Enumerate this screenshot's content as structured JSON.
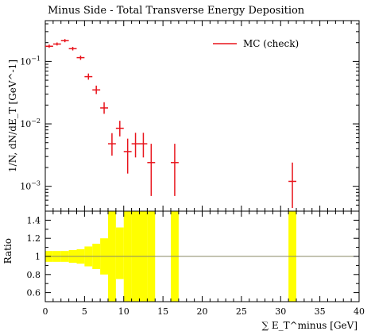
{
  "chart_data": {
    "type": "scatter",
    "title": "Minus Side - Total Transverse Energy Deposition",
    "ylabel": "1/N, dN/dE_T [GeV^-1]",
    "xlabel": "∑ E_T^minus [GeV]",
    "ratio_ylabel": "Ratio",
    "xlim": [
      0,
      40
    ],
    "ylim": [
      0.0004,
      0.45
    ],
    "yscale": "log",
    "ratio_ylim": [
      0.5,
      1.5
    ],
    "ratio_reference": 1,
    "colors": {
      "series": "#e8141c",
      "band": "#ffff00",
      "ref_line": "#888866"
    },
    "x_ticks": [
      "0",
      "5",
      "10",
      "15",
      "20",
      "25",
      "30",
      "35",
      "40"
    ],
    "y_ticks": [
      "10^-1",
      "10^-2",
      "10^-3"
    ],
    "ratio_ticks": [
      "1.4",
      "1.2",
      "1",
      "0.8",
      "0.6"
    ],
    "legend": {
      "position": "top-right",
      "label": "MC (check)"
    },
    "series": [
      {
        "name": "MC (check)",
        "points": [
          {
            "x": 0.5,
            "y": 0.175,
            "ylo": 0.165,
            "yhi": 0.186
          },
          {
            "x": 1.5,
            "y": 0.19,
            "ylo": 0.18,
            "yhi": 0.201
          },
          {
            "x": 2.5,
            "y": 0.215,
            "ylo": 0.203,
            "yhi": 0.228
          },
          {
            "x": 3.5,
            "y": 0.16,
            "ylo": 0.15,
            "yhi": 0.171
          },
          {
            "x": 4.5,
            "y": 0.115,
            "ylo": 0.106,
            "yhi": 0.124
          },
          {
            "x": 5.5,
            "y": 0.057,
            "ylo": 0.051,
            "yhi": 0.064
          },
          {
            "x": 6.5,
            "y": 0.035,
            "ylo": 0.03,
            "yhi": 0.041
          },
          {
            "x": 7.5,
            "y": 0.018,
            "ylo": 0.0145,
            "yhi": 0.0222
          },
          {
            "x": 8.5,
            "y": 0.0048,
            "ylo": 0.0031,
            "yhi": 0.0071
          },
          {
            "x": 9.5,
            "y": 0.0085,
            "ylo": 0.0063,
            "yhi": 0.0112
          },
          {
            "x": 10.5,
            "y": 0.0036,
            "ylo": 0.0016,
            "yhi": 0.0058
          },
          {
            "x": 11.5,
            "y": 0.0048,
            "ylo": 0.0029,
            "yhi": 0.0072
          },
          {
            "x": 12.5,
            "y": 0.0048,
            "ylo": 0.0029,
            "yhi": 0.0072
          },
          {
            "x": 13.5,
            "y": 0.0024,
            "ylo": 0.0007,
            "yhi": 0.0048
          },
          {
            "x": 16.5,
            "y": 0.0024,
            "ylo": 0.0007,
            "yhi": 0.0048
          },
          {
            "x": 31.5,
            "y": 0.0012,
            "ylo": 0.00045,
            "yhi": 0.0024
          }
        ]
      }
    ],
    "ratio_band": [
      {
        "x": 0.5,
        "lo": 0.94,
        "hi": 1.06
      },
      {
        "x": 1.5,
        "lo": 0.94,
        "hi": 1.06
      },
      {
        "x": 2.5,
        "lo": 0.94,
        "hi": 1.06
      },
      {
        "x": 3.5,
        "lo": 0.93,
        "hi": 1.07
      },
      {
        "x": 4.5,
        "lo": 0.92,
        "hi": 1.08
      },
      {
        "x": 5.5,
        "lo": 0.89,
        "hi": 1.11
      },
      {
        "x": 6.5,
        "lo": 0.86,
        "hi": 1.14
      },
      {
        "x": 7.5,
        "lo": 0.8,
        "hi": 1.2
      },
      {
        "x": 8.5,
        "lo": 0.45,
        "hi": 1.55
      },
      {
        "x": 9.5,
        "lo": 0.75,
        "hi": 1.32
      },
      {
        "x": 10.5,
        "lo": 0.45,
        "hi": 1.55
      },
      {
        "x": 11.5,
        "lo": 0.45,
        "hi": 1.55
      },
      {
        "x": 12.5,
        "lo": 0.45,
        "hi": 1.55
      },
      {
        "x": 13.5,
        "lo": 0.45,
        "hi": 1.55
      },
      {
        "x": 16.5,
        "lo": 0.45,
        "hi": 1.55
      },
      {
        "x": 31.5,
        "lo": 0.45,
        "hi": 1.55
      }
    ]
  }
}
